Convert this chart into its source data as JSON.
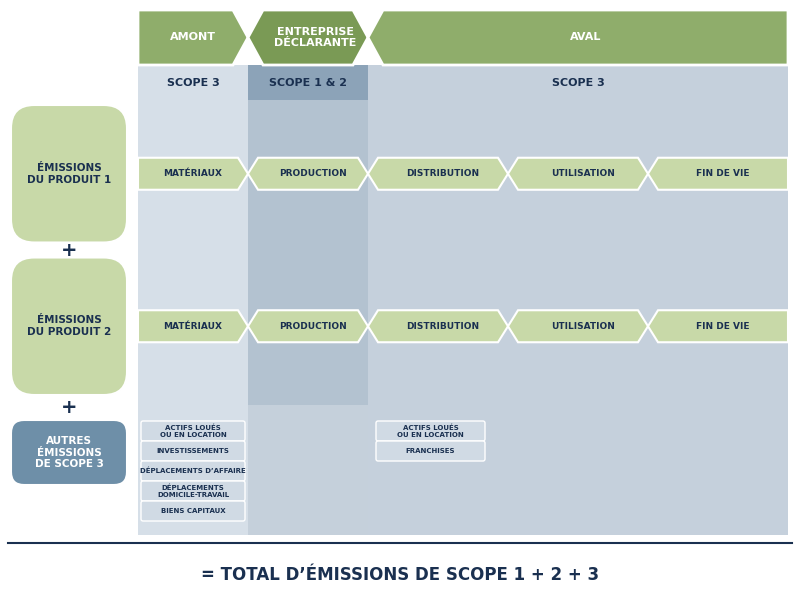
{
  "bg_color": "#ffffff",
  "header_green": "#8fad6b",
  "header_green_dark": "#7a9a55",
  "scope12_bg": "#8ca3b8",
  "scope3_bg": "#c5d0dc",
  "left_scope3_bg": "#d6dfe8",
  "product_green": "#c8d9a8",
  "product_green_text": "#1a3050",
  "autres_blue": "#6e8fa8",
  "autres_blue_text": "#ffffff",
  "chevron_green_light": "#c8d9a8",
  "chevron_scope12": "#8ca3b8",
  "small_box_bg": "#d0dae4",
  "small_box_text": "#1a3050",
  "bottom_line_color": "#1a3050",
  "bottom_text": "= TOTAL D’ÉMISSIONS DE SCOPE 1 + 2 + 3",
  "dark_blue": "#1a3050",
  "title_amont": "AMONT",
  "title_entreprise": "ENTREPRISE\nDÉCLARANTE",
  "title_aval": "AVAL",
  "scope3_left_label": "SCOPE 3",
  "scope12_label": "SCOPE 1 & 2",
  "scope3_right_label": "SCOPE 3",
  "prod1_label": "ÉMISSIONS\nDU PRODUIT 1",
  "plus1": "+",
  "prod2_label": "ÉMISSIONS\nDU PRODUIT 2",
  "plus2": "+",
  "autres_label": "AUTRES\nÉMISSIONS\nDE SCOPE 3",
  "row1_chevrons": [
    "MATÉRIAUX",
    "PRODUCTION",
    "DISTRIBUTION",
    "UTILISATION",
    "FIN DE VIE"
  ],
  "row2_chevrons": [
    "MATÉRIAUX",
    "PRODUCTION",
    "DISTRIBUTION",
    "UTILISATION",
    "FIN DE VIE"
  ],
  "left_small_boxes": [
    "ACTIFS LOUÉS\nOU EN LOCATION",
    "INVESTISSEMENTS",
    "DÉPLACEMENTS D’AFFAIRE",
    "DÉPLACEMENTS\nDOMICILE-TRAVAIL",
    "BIENS CAPITAUX"
  ],
  "right_small_boxes": [
    "ACTIFS LOUÉS\nOU EN LOCATION",
    "FRANCHISES"
  ]
}
